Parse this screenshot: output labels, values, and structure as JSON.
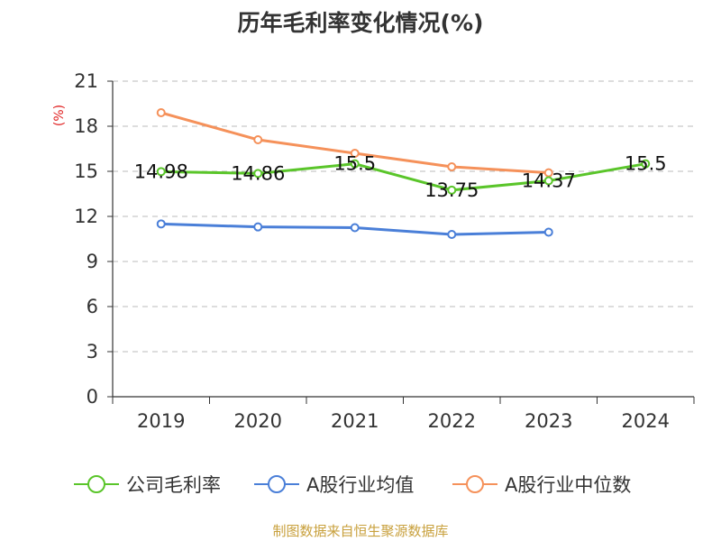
{
  "chart_data": {
    "type": "line",
    "title": "历年毛利率变化情况(%)",
    "ylabel": "(%)",
    "xlabel": "",
    "categories": [
      "2019",
      "2020",
      "2021",
      "2022",
      "2023",
      "2024"
    ],
    "ylim": [
      0,
      21
    ],
    "yticks": [
      0,
      3,
      6,
      9,
      12,
      15,
      18,
      21
    ],
    "grid": true,
    "legend": "bottom",
    "series": [
      {
        "name": "公司毛利率",
        "color": "#5ac52a",
        "values": [
          14.98,
          14.86,
          15.5,
          13.75,
          14.37,
          15.5
        ],
        "labels": [
          "14.98",
          "14.86",
          "15.5",
          "13.75",
          "14.37",
          "15.5"
        ]
      },
      {
        "name": "A股行业均值",
        "color": "#4a7fd8",
        "values": [
          11.5,
          11.3,
          11.25,
          10.8,
          10.95,
          null
        ]
      },
      {
        "name": "A股行业中位数",
        "color": "#f5915a",
        "values": [
          18.9,
          17.1,
          16.2,
          15.3,
          14.9,
          null
        ]
      }
    ]
  },
  "source": "制图数据来自恒生聚源数据库"
}
